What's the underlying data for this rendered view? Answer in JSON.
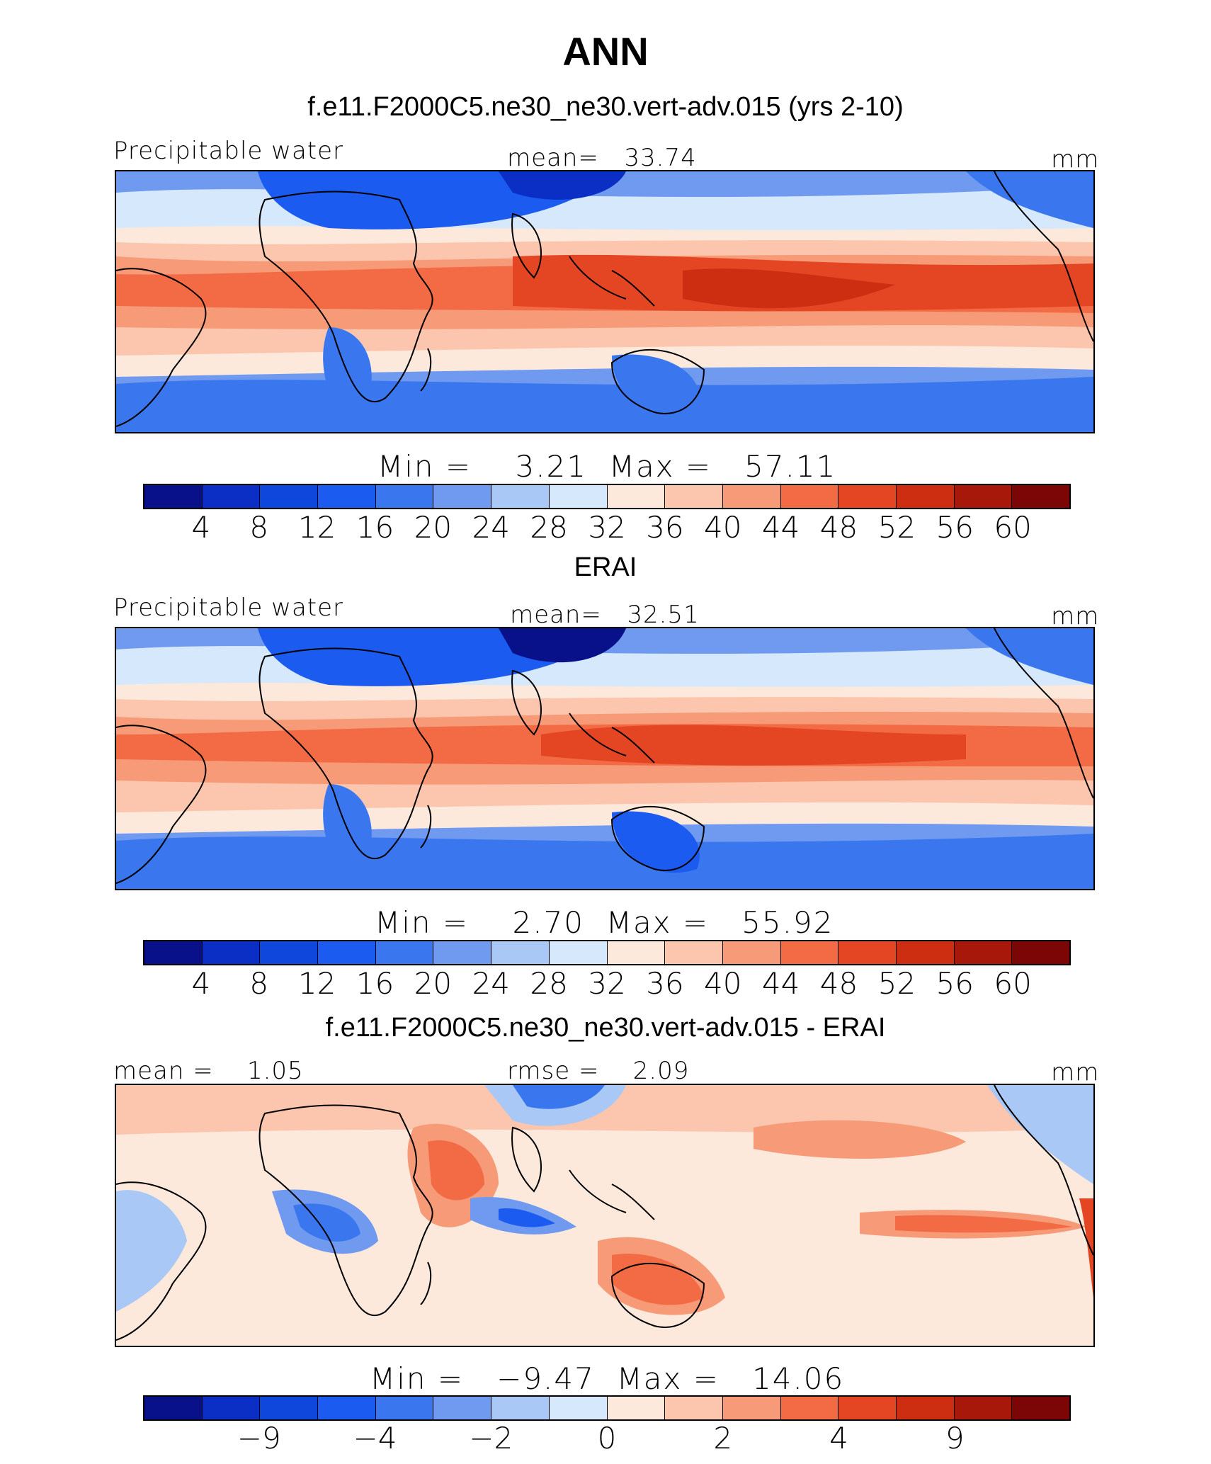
{
  "header": {
    "title": "ANN",
    "panel1_title": "f.e11.F2000C5.ne30_ne30.vert-adv.015 (yrs 2-10)",
    "panel2_title": "ERAI",
    "panel3_title": "f.e11.F2000C5.ne30_ne30.vert-adv.015 - ERAI"
  },
  "colors": {
    "levels15": [
      "#08108a",
      "#0b2fc4",
      "#0f47dd",
      "#1b5bf0",
      "#3a77ee",
      "#6f9af0",
      "#a9c8f6",
      "#d6e8fb",
      "#fde9dc",
      "#fbc6ad",
      "#f79a77",
      "#f26b45",
      "#e44522",
      "#cd2d10",
      "#a7180a",
      "#7c0606"
    ]
  },
  "chart_data": [
    {
      "type": "heatmap",
      "title": "f.e11.F2000C5.ne30_ne30.vert-adv.015 (yrs 2-10)",
      "variable": "Precipitable water",
      "units": "mm",
      "mean_label": "mean=",
      "mean": "33.74",
      "min_label": "Min =",
      "min": "3.21",
      "max_label": "Max =",
      "max": "57.11",
      "colorbar_ticks": [
        "4",
        "8",
        "12",
        "16",
        "20",
        "24",
        "28",
        "32",
        "36",
        "40",
        "44",
        "48",
        "52",
        "56",
        "60"
      ],
      "levels": [
        4,
        8,
        12,
        16,
        20,
        24,
        28,
        32,
        36,
        40,
        44,
        48,
        52,
        56,
        60
      ]
    },
    {
      "type": "heatmap",
      "title": "ERAI",
      "variable": "Precipitable water",
      "units": "mm",
      "mean_label": "mean=",
      "mean": "32.51",
      "min_label": "Min =",
      "min": "2.70",
      "max_label": "Max =",
      "max": "55.92",
      "colorbar_ticks": [
        "4",
        "8",
        "12",
        "16",
        "20",
        "24",
        "28",
        "32",
        "36",
        "40",
        "44",
        "48",
        "52",
        "56",
        "60"
      ],
      "levels": [
        4,
        8,
        12,
        16,
        20,
        24,
        28,
        32,
        36,
        40,
        44,
        48,
        52,
        56,
        60
      ]
    },
    {
      "type": "heatmap",
      "title": "f.e11.F2000C5.ne30_ne30.vert-adv.015 - ERAI",
      "units": "mm",
      "mean_label": "mean =",
      "mean": "1.05",
      "rmse_label": "rmse =",
      "rmse": "2.09",
      "min_label": "Min =",
      "min": "−9.47",
      "max_label": "Max =",
      "max": "14.06",
      "colorbar_ticks": [
        "−9",
        "−4",
        "−2",
        "0",
        "2",
        "4",
        "9"
      ],
      "levels": [
        -9,
        -4,
        -2,
        0,
        2,
        4,
        9
      ]
    }
  ]
}
